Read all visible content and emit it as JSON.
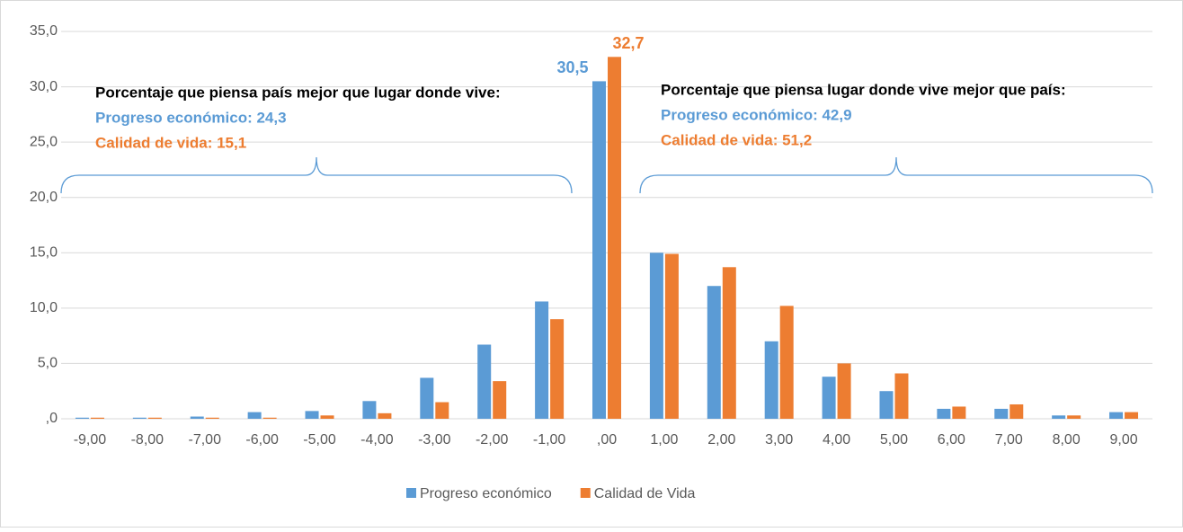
{
  "chart_data": {
    "type": "bar",
    "categories": [
      "-9,00",
      "-8,00",
      "-7,00",
      "-6,00",
      "-5,00",
      "-4,00",
      "-3,00",
      "-2,00",
      "-1,00",
      ",00",
      "1,00",
      "2,00",
      "3,00",
      "4,00",
      "5,00",
      "6,00",
      "7,00",
      "8,00",
      "9,00"
    ],
    "series": [
      {
        "name": "Progreso económico",
        "color": "#5b9bd5",
        "values": [
          0.1,
          0.1,
          0.2,
          0.6,
          0.7,
          1.6,
          3.7,
          6.7,
          10.6,
          30.5,
          15.0,
          12.0,
          7.0,
          3.8,
          2.5,
          0.9,
          0.9,
          0.3,
          0.6
        ],
        "value_labels": [
          null,
          null,
          null,
          null,
          null,
          null,
          null,
          null,
          null,
          "30,5",
          null,
          null,
          null,
          null,
          null,
          null,
          null,
          null,
          null
        ]
      },
      {
        "name": "Calidad de Vida",
        "color": "#ed7d31",
        "values": [
          0.1,
          0.1,
          0.1,
          0.1,
          0.3,
          0.5,
          1.5,
          3.4,
          9.0,
          32.7,
          14.9,
          13.7,
          10.2,
          5.0,
          4.1,
          1.1,
          1.3,
          0.3,
          0.6
        ],
        "value_labels": [
          null,
          null,
          null,
          null,
          null,
          null,
          null,
          null,
          null,
          "32,7",
          null,
          null,
          null,
          null,
          null,
          null,
          null,
          null,
          null
        ]
      }
    ],
    "ylim": [
      0,
      35
    ],
    "yticks": [
      {
        "value": 0,
        "label": ",0"
      },
      {
        "value": 5,
        "label": "5,0"
      },
      {
        "value": 10,
        "label": "10,0"
      },
      {
        "value": 15,
        "label": "15,0"
      },
      {
        "value": 20,
        "label": "20,0"
      },
      {
        "value": 25,
        "label": "25,0"
      },
      {
        "value": 30,
        "label": "30,0"
      },
      {
        "value": 35,
        "label": "35,0"
      }
    ],
    "grid": true,
    "legend": "bottom",
    "annotations": [
      {
        "title": "Porcentaje que piensa país mejor que lugar donde vive:",
        "lines": [
          {
            "text": "Progreso económico: 24,3",
            "color": "#5b9bd5"
          },
          {
            "text": "Calidad de vida: 15,1",
            "color": "#ed7d31"
          }
        ]
      },
      {
        "title": "Porcentaje que piensa lugar donde vive mejor que país:",
        "lines": [
          {
            "text": "Progreso económico: 42,9",
            "color": "#5b9bd5"
          },
          {
            "text": "Calidad de vida: 51,2",
            "color": "#ed7d31"
          }
        ]
      }
    ]
  }
}
